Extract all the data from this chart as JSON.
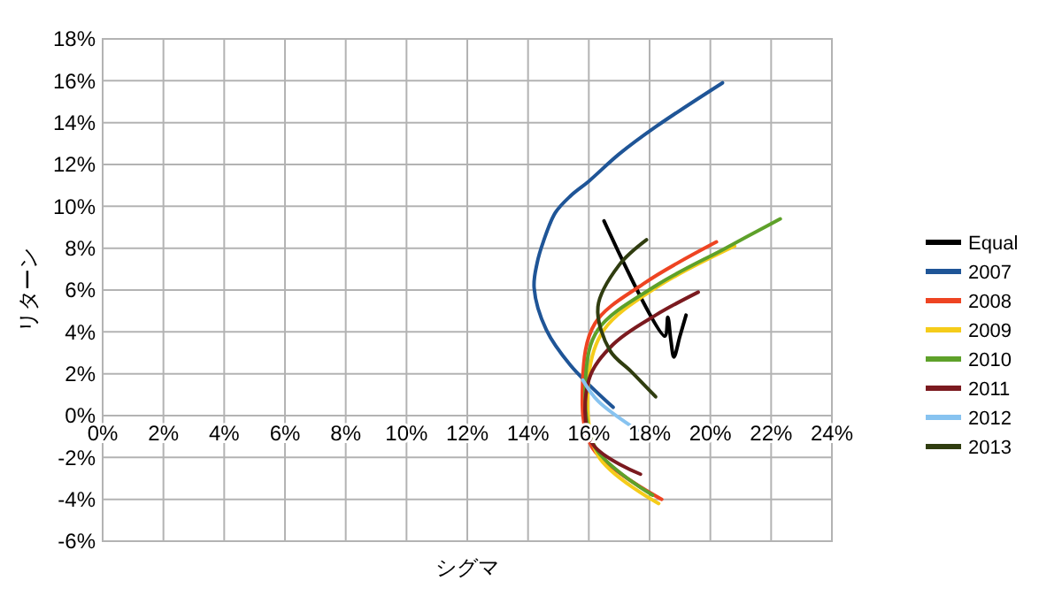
{
  "chart_data": {
    "type": "line",
    "xlabel": "シグマ",
    "ylabel": "リターン",
    "legend": "right",
    "grid": true,
    "line_style": "solid",
    "marker": "none",
    "xlim": [
      0,
      24
    ],
    "ylim": [
      -6,
      18
    ],
    "xticks": [
      {
        "value": 0,
        "label": "0%"
      },
      {
        "value": 2,
        "label": "2%"
      },
      {
        "value": 4,
        "label": "4%"
      },
      {
        "value": 6,
        "label": "6%"
      },
      {
        "value": 8,
        "label": "8%"
      },
      {
        "value": 10,
        "label": "10%"
      },
      {
        "value": 12,
        "label": "12%"
      },
      {
        "value": 14,
        "label": "14%"
      },
      {
        "value": 16,
        "label": "16%"
      },
      {
        "value": 18,
        "label": "18%"
      },
      {
        "value": 20,
        "label": "20%"
      },
      {
        "value": 22,
        "label": "22%"
      },
      {
        "value": 24,
        "label": "24%"
      }
    ],
    "yticks": [
      {
        "value": -6,
        "label": "-6%"
      },
      {
        "value": -4,
        "label": "-4%"
      },
      {
        "value": -2,
        "label": "-2%"
      },
      {
        "value": 0,
        "label": "0%"
      },
      {
        "value": 2,
        "label": "2%"
      },
      {
        "value": 4,
        "label": "4%"
      },
      {
        "value": 6,
        "label": "6%"
      },
      {
        "value": 8,
        "label": "8%"
      },
      {
        "value": 10,
        "label": "10%"
      },
      {
        "value": 12,
        "label": "12%"
      },
      {
        "value": 14,
        "label": "14%"
      },
      {
        "value": 16,
        "label": "16%"
      },
      {
        "value": 18,
        "label": "18%"
      }
    ],
    "series": [
      {
        "name": "Equal",
        "color": "#000000",
        "x": [
          16.5,
          18.5,
          18.6,
          18.7,
          18.8,
          19.0,
          19.2
        ],
        "values": [
          9.3,
          3.8,
          4.7,
          3.6,
          2.8,
          3.8,
          4.8
        ]
      },
      {
        "name": "2007",
        "color": "#1f5597",
        "x": [
          16.8,
          15.4,
          14.6,
          14.2,
          14.3,
          14.5,
          14.9,
          15.4,
          16.0,
          17.0,
          18.2,
          20.4
        ],
        "values": [
          0.4,
          2.4,
          4.1,
          6.1,
          7.3,
          8.3,
          9.7,
          10.5,
          11.2,
          12.5,
          13.8,
          15.9
        ]
      },
      {
        "name": "2008",
        "color": "#ee4422",
        "x": [
          18.4,
          16.1,
          15.8,
          16.2,
          17.8,
          20.2
        ],
        "values": [
          -4.0,
          -1.5,
          1.7,
          4.4,
          6.3,
          8.3
        ]
      },
      {
        "name": "2009",
        "color": "#f5cc1a",
        "x": [
          18.3,
          16.3,
          16.0,
          16.5,
          18.2,
          20.8
        ],
        "values": [
          -4.2,
          -1.9,
          1.9,
          4.1,
          6.1,
          8.1
        ]
      },
      {
        "name": "2010",
        "color": "#5ea12a",
        "x": [
          18.1,
          16.2,
          15.9,
          16.3,
          18.2,
          20.5,
          22.3
        ],
        "values": [
          -3.8,
          -1.5,
          1.9,
          4.1,
          6.2,
          8.0,
          9.4
        ]
      },
      {
        "name": "2011",
        "color": "#7b1a1f",
        "x": [
          17.7,
          16.1,
          16.0,
          16.8,
          18.2,
          19.6
        ],
        "values": [
          -2.8,
          -1.3,
          1.7,
          3.4,
          4.8,
          5.9
        ]
      },
      {
        "name": "2012",
        "color": "#87c3f0",
        "x": [
          15.8,
          16.3,
          17.6
        ],
        "values": [
          1.7,
          0.7,
          -0.7
        ]
      },
      {
        "name": "2013",
        "color": "#303d10",
        "x": [
          18.2,
          17.4,
          16.7,
          16.3,
          17.0,
          17.9
        ],
        "values": [
          0.9,
          2.1,
          3.1,
          5.2,
          7.2,
          8.4
        ]
      }
    ]
  }
}
